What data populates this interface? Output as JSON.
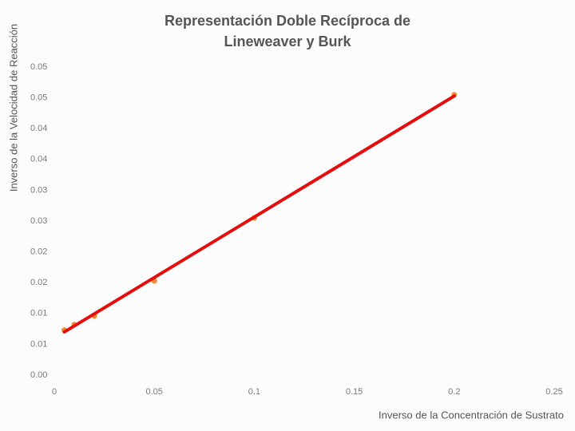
{
  "chart_data": {
    "type": "scatter",
    "title": [
      "Representación Doble Recíproca de",
      "Lineweaver y Burk"
    ],
    "y_label": "Inverso de la Velocidad de Reacción",
    "x_label": "Inverso de la Concentración de Sustrato",
    "x": [
      0.005,
      0.01,
      0.02,
      0.05,
      0.1,
      0.2
    ],
    "values": [
      0.0073,
      0.0082,
      0.0096,
      0.0153,
      0.0255,
      0.0455
    ],
    "color": "#f08a2c",
    "trendline": {
      "x": [
        0.005,
        0.2
      ],
      "values": [
        0.007,
        0.0453
      ],
      "color": "#e30f0f"
    },
    "xlim": [
      0,
      0.25
    ],
    "xticks": [
      0,
      0.05,
      0.1,
      0.15,
      0.2,
      0.25
    ],
    "ylim": [
      0,
      0.05
    ],
    "yticks": [
      {
        "value": 0,
        "label": "0.00"
      },
      {
        "value": 0.005,
        "label": "0.01"
      },
      {
        "value": 0.01,
        "label": "0.01"
      },
      {
        "value": 0.015,
        "label": "0.02"
      },
      {
        "value": 0.02,
        "label": "0.02"
      },
      {
        "value": 0.025,
        "label": "0.03"
      },
      {
        "value": 0.03,
        "label": "0.03"
      },
      {
        "value": 0.035,
        "label": "0.04"
      },
      {
        "value": 0.04,
        "label": "0.04"
      },
      {
        "value": 0.045,
        "label": "0.05"
      },
      {
        "value": 0.05,
        "label": "0.05"
      }
    ],
    "grid": false
  }
}
